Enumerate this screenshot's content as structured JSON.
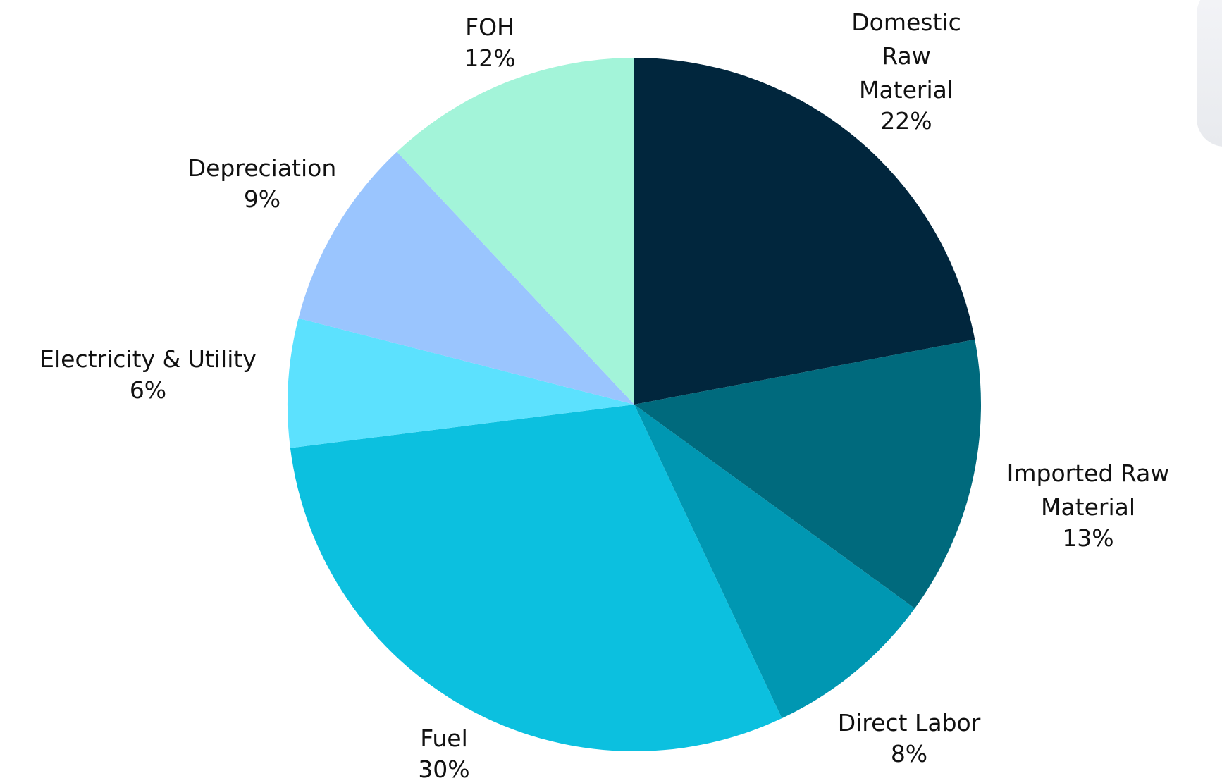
{
  "chart_data": {
    "type": "pie",
    "categories": [
      "Domestic Raw Material",
      "Imported Raw Material",
      "Direct Labor",
      "Fuel",
      "Electricity & Utility",
      "Depreciation",
      "FOH"
    ],
    "values": [
      22,
      13,
      8,
      30,
      6,
      9,
      12
    ],
    "value_labels": [
      "22%",
      "13%",
      "8%",
      "30%",
      "6%",
      "9%",
      "12%"
    ],
    "colors": [
      "#01263d",
      "#006a7d",
      "#0097b2",
      "#0cc0df",
      "#5ce1fe",
      "#9ac5fe",
      "#a3f4d9"
    ]
  }
}
